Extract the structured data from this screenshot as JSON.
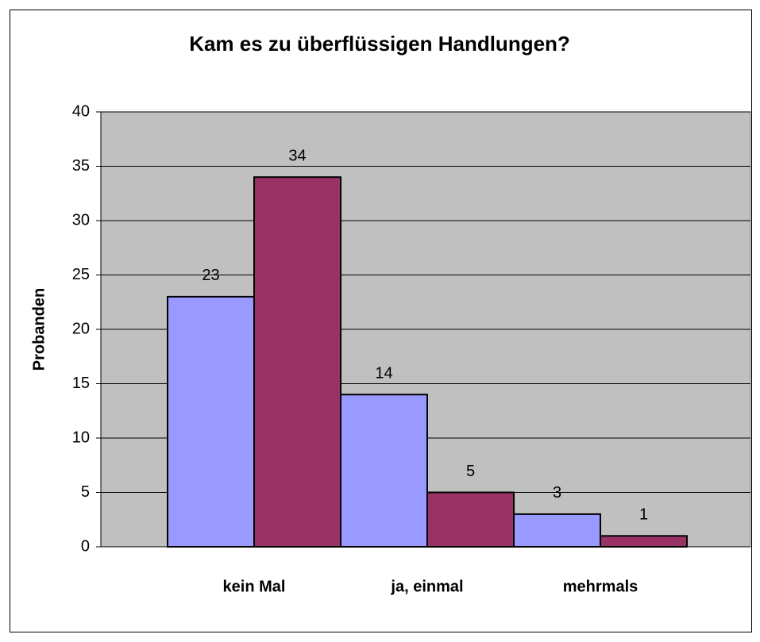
{
  "chart_data": {
    "type": "bar",
    "title": "Kam es zu überflüssigen Handlungen?",
    "ylabel": "Probanden",
    "categories": [
      "kein Mal",
      "ja, einmal",
      "mehrmals"
    ],
    "series": [
      {
        "color": "#9999ff",
        "values": [
          23,
          14,
          3
        ]
      },
      {
        "color": "#993366",
        "values": [
          34,
          5,
          1
        ]
      }
    ],
    "ylim": [
      0,
      40
    ],
    "yticks": [
      0,
      5,
      10,
      15,
      20,
      25,
      30,
      35,
      40
    ],
    "grid": true,
    "plot_background": "#c0c0c0"
  }
}
